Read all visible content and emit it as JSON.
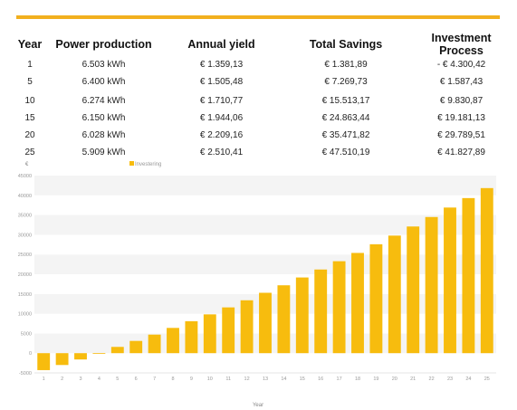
{
  "table": {
    "headers": [
      "Year",
      "Power production",
      "Annual yield",
      "Total Savings",
      "Investment Process"
    ],
    "rows": [
      [
        "1",
        "6.503 kWh",
        "€ 1.359,13",
        "€ 1.381,89",
        "- € 4.300,42"
      ],
      [
        "5",
        "6.400 kWh",
        "€ 1.505,48",
        "€ 7.269,73",
        "€ 1.587,43"
      ],
      [
        "10",
        "6.274 kWh",
        "€ 1.710,77",
        "€ 15.513,17",
        "€ 9.830,87"
      ],
      [
        "15",
        "6.150 kWh",
        "€ 1.944,06",
        "€ 24.863,44",
        "€ 19.181,13"
      ],
      [
        "20",
        "6.028 kWh",
        "€ 2.209,16",
        "€ 35.471,82",
        "€ 29.789,51"
      ],
      [
        "25",
        "5.909 kWh",
        "€ 2.510,41",
        "€ 47.510,19",
        "€ 41.827,89"
      ]
    ]
  },
  "colors": {
    "accent": "#f2b01e",
    "bar": "#f7bc0e"
  },
  "chart_data": {
    "type": "bar",
    "ylabel": "€",
    "xlabel": "Year",
    "ylim": [
      -5000,
      45000
    ],
    "y_ticks": [
      -5000,
      0,
      5000,
      10000,
      15000,
      20000,
      25000,
      30000,
      35000,
      40000,
      45000
    ],
    "legend_position": "top-left",
    "grid": true,
    "categories": [
      "1",
      "2",
      "3",
      "4",
      "5",
      "6",
      "7",
      "8",
      "9",
      "10",
      "11",
      "12",
      "13",
      "14",
      "15",
      "16",
      "17",
      "18",
      "19",
      "20",
      "21",
      "22",
      "23",
      "24",
      "25"
    ],
    "series": [
      {
        "name": "Investering",
        "values": [
          -4300,
          -3000,
          -1600,
          -100,
          1590,
          3100,
          4700,
          6400,
          8100,
          9830,
          11600,
          13400,
          15300,
          17200,
          19180,
          21200,
          23300,
          25400,
          27600,
          29790,
          32100,
          34500,
          36900,
          39300,
          41830
        ]
      }
    ]
  }
}
